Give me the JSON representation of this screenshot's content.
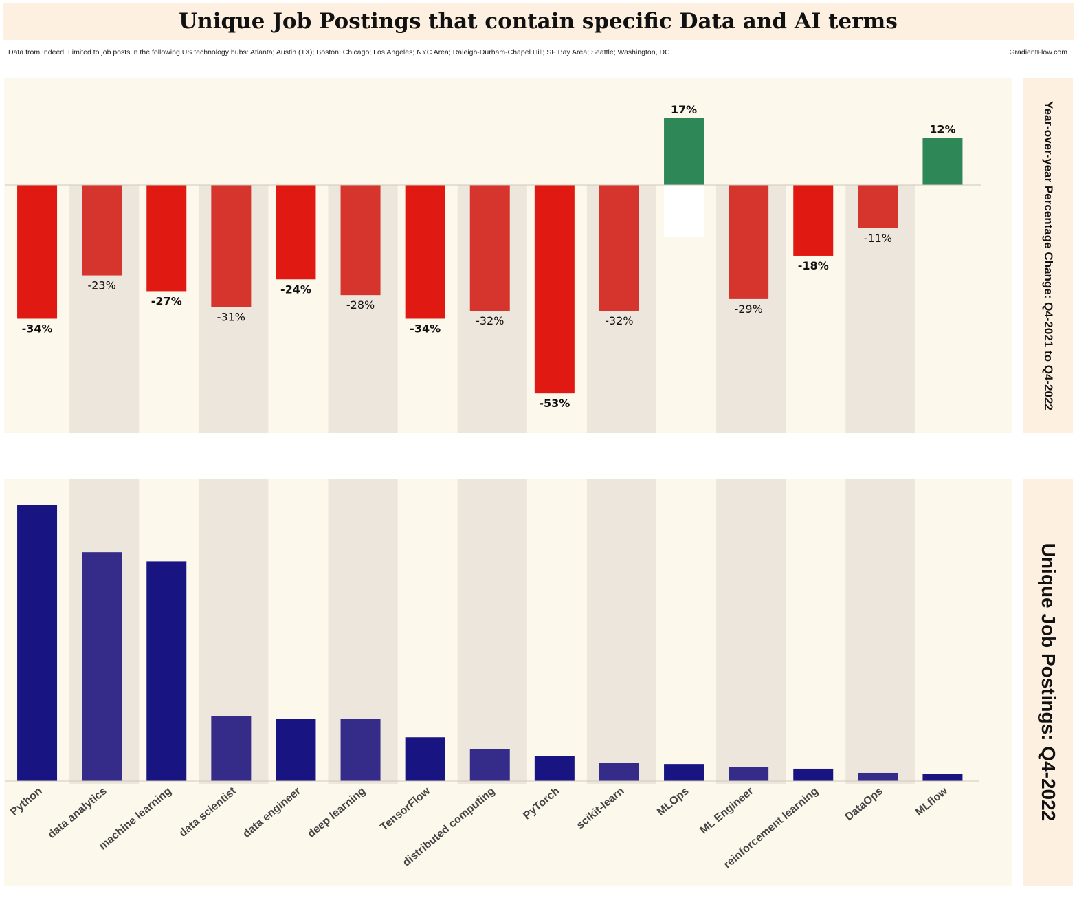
{
  "title": "Unique Job Postings that contain specific Data and AI terms",
  "source_note": "Data from Indeed.  Limited to job posts in the following US technology hubs: Atlanta; Austin (TX); Boston; Chicago; Los Angeles; NYC Area; Raleigh-Durham-Chapel Hill; SF Bay Area; Seattle; Washington, DC",
  "credit": "GradientFlow.com",
  "colors": {
    "negative_a": "#e01a12",
    "negative_b": "#d5352c",
    "positive": "#2e8757",
    "bar_a": "#181583",
    "bar_b": "#352c8a",
    "band": "#ece6dc",
    "panel_bg": "#fdf8ec"
  },
  "chart_data": [
    {
      "type": "bar",
      "title": "Year-over-year Percentage Change: Q4-2021 to Q4-2022",
      "categories": [
        "Python",
        "data analytics",
        "machine learning",
        "data scientist",
        "data engineer",
        "deep learning",
        "TensorFlow",
        "distributed computing",
        "PyTorch",
        "scikit-learn",
        "MLOps",
        "ML Engineer",
        "reinforcement learning",
        "DataOps",
        "MLflow"
      ],
      "values": [
        -34,
        -23,
        -27,
        -31,
        -24,
        -28,
        -34,
        -32,
        -53,
        -32,
        17,
        -29,
        -18,
        -11,
        12
      ],
      "labels": [
        "-34%",
        "-23%",
        "-27%",
        "-31%",
        "-24%",
        "-28%",
        "-34%",
        "-32%",
        "-53%",
        "-32%",
        "17%",
        "-29%",
        "-18%",
        "-11%",
        "12%"
      ],
      "ylim": [
        -63,
        27
      ],
      "unit": "%"
    },
    {
      "type": "bar",
      "title": "Unique Job Postings: Q4-2022",
      "categories": [
        "Python",
        "data analytics",
        "machine learning",
        "data scientist",
        "data engineer",
        "deep learning",
        "TensorFlow",
        "distributed computing",
        "PyTorch",
        "scikit-learn",
        "MLOps",
        "ML Engineer",
        "reinforcement learning",
        "DataOps",
        "MLflow"
      ],
      "values": [
        100,
        83,
        79.7,
        23.6,
        22.6,
        22.6,
        15.9,
        11.7,
        9,
        6.7,
        6.2,
        5,
        4.5,
        3,
        2.7
      ],
      "ylim": [
        0,
        108
      ],
      "note": "y-axis unlabeled; values relative to Python = 100"
    }
  ]
}
